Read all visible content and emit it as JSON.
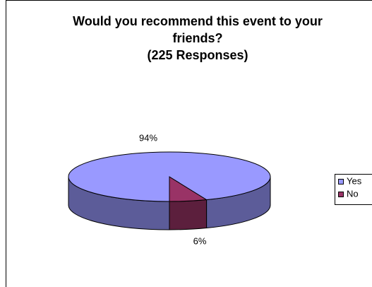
{
  "chart_data": {
    "type": "pie",
    "title": "Would you recommend this event to your friends?",
    "subtitle": "(225 Responses)",
    "categories": [
      "Yes",
      "No"
    ],
    "values": [
      94,
      6
    ],
    "value_labels": [
      "94%",
      "6%"
    ],
    "colors": [
      "#9999ff",
      "#993366"
    ],
    "side_colors": [
      "#5c5c99",
      "#5c1f3d"
    ],
    "legend": "right"
  }
}
